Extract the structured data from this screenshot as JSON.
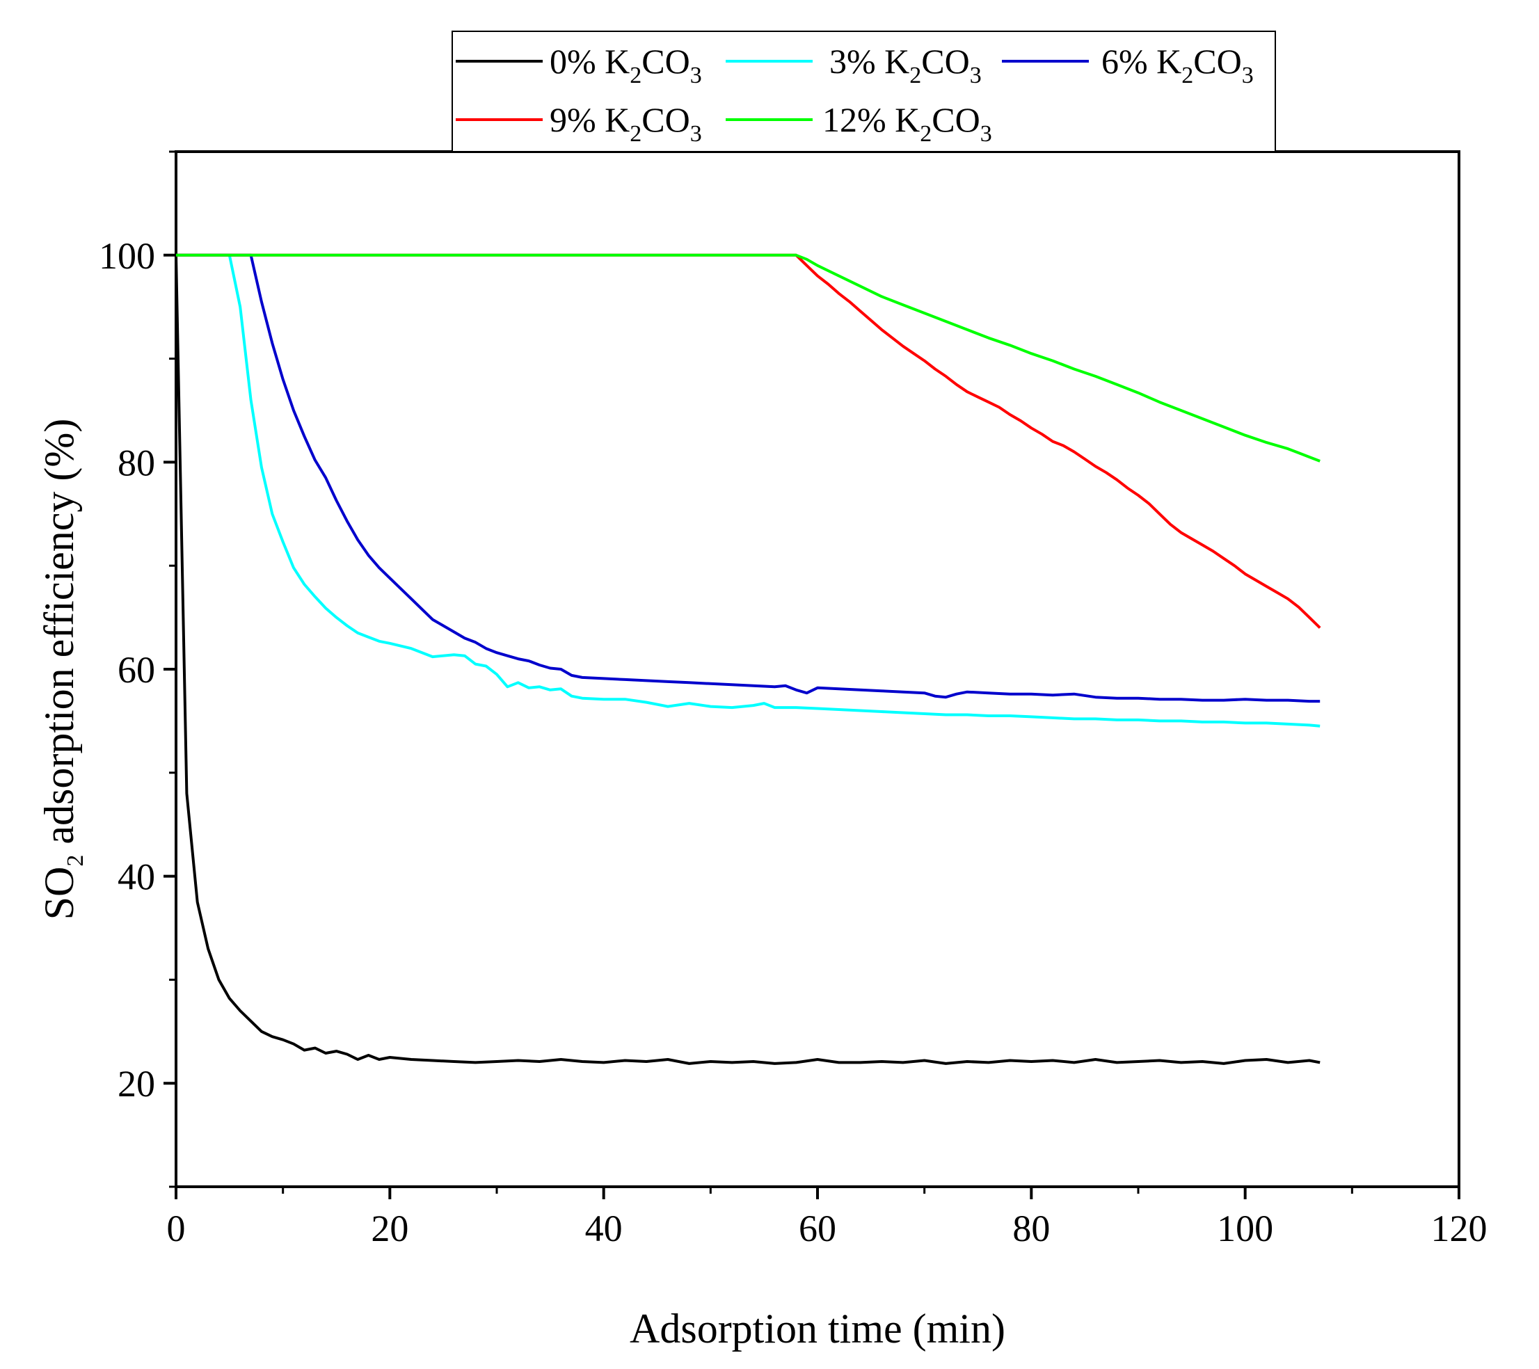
{
  "chart_data": {
    "type": "line",
    "title": "",
    "xlabel": "Adsorption time (min)",
    "ylabel": {
      "prefix": "SO",
      "sub": "2",
      "suffix": " adsorption efficiency (%)"
    },
    "xlim": [
      0,
      120
    ],
    "ylim": [
      10,
      110
    ],
    "x_ticks": [
      0,
      20,
      40,
      60,
      80,
      100,
      120
    ],
    "y_ticks": [
      20,
      40,
      60,
      80,
      100
    ],
    "grid": false,
    "legend_position": "top",
    "series": [
      {
        "name": "0% K2CO3",
        "label": {
          "pre": "0% K",
          "sub1": "2",
          "mid": "CO",
          "sub2": "3"
        },
        "color": "#000000",
        "x": [
          0,
          1,
          2,
          3,
          4,
          5,
          6,
          7,
          8,
          9,
          10,
          11,
          12,
          13,
          14,
          15,
          16,
          17,
          18,
          19,
          20,
          22,
          24,
          26,
          28,
          30,
          32,
          34,
          36,
          38,
          40,
          42,
          44,
          46,
          48,
          50,
          52,
          54,
          56,
          58,
          60,
          62,
          64,
          66,
          68,
          70,
          72,
          74,
          76,
          78,
          80,
          82,
          84,
          86,
          88,
          90,
          92,
          94,
          96,
          98,
          100,
          102,
          104,
          106,
          107
        ],
        "y": [
          100,
          48,
          37.5,
          33,
          30,
          28.2,
          27,
          26,
          25,
          24.5,
          24.2,
          23.8,
          23.2,
          23.4,
          22.9,
          23.1,
          22.8,
          22.3,
          22.7,
          22.3,
          22.5,
          22.3,
          22.2,
          22.1,
          22.0,
          22.1,
          22.2,
          22.1,
          22.3,
          22.1,
          22.0,
          22.2,
          22.1,
          22.3,
          21.9,
          22.1,
          22.0,
          22.1,
          21.9,
          22.0,
          22.3,
          22.0,
          22.0,
          22.1,
          22.0,
          22.2,
          21.9,
          22.1,
          22.0,
          22.2,
          22.1,
          22.2,
          22.0,
          22.3,
          22.0,
          22.1,
          22.2,
          22.0,
          22.1,
          21.9,
          22.2,
          22.3,
          22.0,
          22.2,
          22.0
        ]
      },
      {
        "name": "3% K2CO3",
        "label": {
          "pre": " 3% K",
          "sub1": "2",
          "mid": "CO",
          "sub2": "3"
        },
        "color": "#00FFFF",
        "x": [
          0,
          5,
          6,
          7,
          8,
          9,
          10,
          11,
          12,
          13,
          14,
          15,
          16,
          17,
          18,
          19,
          20,
          22,
          24,
          26,
          27,
          28,
          29,
          30,
          31,
          32,
          33,
          34,
          35,
          36,
          37,
          38,
          40,
          42,
          44,
          46,
          48,
          50,
          52,
          54,
          55,
          56,
          58,
          60,
          62,
          64,
          66,
          68,
          70,
          72,
          74,
          76,
          78,
          80,
          82,
          84,
          86,
          88,
          90,
          92,
          94,
          96,
          98,
          100,
          102,
          104,
          106,
          107
        ],
        "y": [
          100,
          100,
          95,
          86,
          79.5,
          75,
          72.3,
          69.8,
          68.2,
          67,
          65.9,
          65,
          64.2,
          63.5,
          63.1,
          62.7,
          62.5,
          62.0,
          61.2,
          61.4,
          61.3,
          60.5,
          60.3,
          59.5,
          58.3,
          58.7,
          58.2,
          58.3,
          58.0,
          58.1,
          57.4,
          57.2,
          57.1,
          57.1,
          56.8,
          56.4,
          56.7,
          56.4,
          56.3,
          56.5,
          56.7,
          56.3,
          56.3,
          56.2,
          56.1,
          56.0,
          55.9,
          55.8,
          55.7,
          55.6,
          55.6,
          55.5,
          55.5,
          55.4,
          55.3,
          55.2,
          55.2,
          55.1,
          55.1,
          55.0,
          55.0,
          54.9,
          54.9,
          54.8,
          54.8,
          54.7,
          54.6,
          54.5
        ]
      },
      {
        "name": "6% K2CO3",
        "label": {
          "pre": "6% K",
          "sub1": "2",
          "mid": "CO",
          "sub2": "3"
        },
        "color": "#0000CC",
        "x": [
          0,
          7,
          8,
          9,
          10,
          11,
          12,
          13,
          14,
          15,
          16,
          17,
          18,
          19,
          20,
          21,
          22,
          23,
          24,
          25,
          26,
          27,
          28,
          29,
          30,
          31,
          32,
          33,
          34,
          35,
          36,
          37,
          38,
          40,
          42,
          44,
          46,
          48,
          50,
          52,
          54,
          56,
          57,
          58,
          59,
          60,
          62,
          64,
          66,
          68,
          70,
          71,
          72,
          73,
          74,
          76,
          78,
          80,
          82,
          84,
          86,
          88,
          90,
          92,
          94,
          96,
          98,
          100,
          102,
          104,
          106,
          107
        ],
        "y": [
          100,
          100,
          95.5,
          91.5,
          88,
          85,
          82.5,
          80.2,
          78.5,
          76.3,
          74.3,
          72.5,
          71.0,
          69.8,
          68.8,
          67.8,
          66.8,
          65.8,
          64.8,
          64.2,
          63.6,
          63.0,
          62.6,
          62.0,
          61.6,
          61.3,
          61.0,
          60.8,
          60.4,
          60.1,
          60.0,
          59.4,
          59.2,
          59.1,
          59.0,
          58.9,
          58.8,
          58.7,
          58.6,
          58.5,
          58.4,
          58.3,
          58.4,
          58.0,
          57.7,
          58.2,
          58.1,
          58.0,
          57.9,
          57.8,
          57.7,
          57.4,
          57.3,
          57.6,
          57.8,
          57.7,
          57.6,
          57.6,
          57.5,
          57.6,
          57.3,
          57.2,
          57.2,
          57.1,
          57.1,
          57.0,
          57.0,
          57.1,
          57.0,
          57.0,
          56.9,
          56.9
        ]
      },
      {
        "name": "9% K2CO3",
        "label": {
          "pre": "9% K",
          "sub1": "2",
          "mid": "CO",
          "sub2": "3"
        },
        "color": "#FF0000",
        "x": [
          0,
          58,
          59,
          60,
          61,
          62,
          63,
          64,
          65,
          66,
          67,
          68,
          69,
          70,
          71,
          72,
          73,
          74,
          75,
          76,
          77,
          78,
          79,
          80,
          81,
          82,
          83,
          84,
          85,
          86,
          87,
          88,
          89,
          90,
          91,
          92,
          93,
          94,
          95,
          96,
          97,
          98,
          99,
          100,
          101,
          102,
          103,
          104,
          105,
          106,
          107
        ],
        "y": [
          100,
          100,
          99,
          98,
          97.2,
          96.3,
          95.5,
          94.6,
          93.7,
          92.8,
          92.0,
          91.2,
          90.5,
          89.8,
          89.0,
          88.3,
          87.5,
          86.8,
          86.3,
          85.8,
          85.3,
          84.6,
          84.0,
          83.3,
          82.7,
          82.0,
          81.6,
          81.0,
          80.3,
          79.6,
          79.0,
          78.3,
          77.5,
          76.8,
          76.0,
          75.0,
          74.0,
          73.2,
          72.6,
          72.0,
          71.4,
          70.7,
          70.0,
          69.2,
          68.6,
          68.0,
          67.4,
          66.8,
          66.0,
          65.0,
          64.0
        ]
      },
      {
        "name": "12% K2CO3",
        "label": {
          "pre": "12% K",
          "sub1": "2",
          "mid": "CO",
          "sub2": "3"
        },
        "color": "#00FF00",
        "x": [
          0,
          58,
          59,
          60,
          62,
          64,
          66,
          68,
          70,
          72,
          74,
          76,
          78,
          80,
          82,
          84,
          86,
          88,
          90,
          92,
          94,
          96,
          98,
          100,
          102,
          104,
          105,
          106,
          107
        ],
        "y": [
          100,
          100,
          99.6,
          99.0,
          98.0,
          97.0,
          96.0,
          95.2,
          94.4,
          93.6,
          92.8,
          92.0,
          91.3,
          90.5,
          89.8,
          89.0,
          88.3,
          87.5,
          86.7,
          85.8,
          85.0,
          84.2,
          83.4,
          82.6,
          81.9,
          81.3,
          80.9,
          80.5,
          80.1
        ]
      }
    ]
  }
}
